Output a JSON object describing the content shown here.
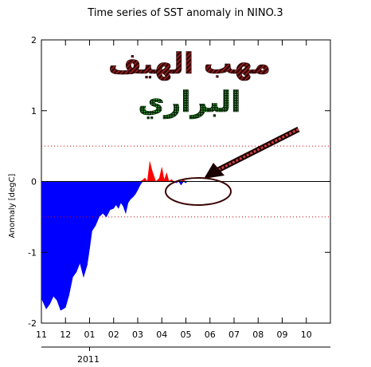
{
  "chart_data": {
    "type": "area",
    "title": "Time series of SST anomaly in NINO.3",
    "ylabel": "Anomaly [degC]",
    "xlabel": "",
    "year_label": "2011",
    "x_tick_labels": [
      "11",
      "12",
      "01",
      "02",
      "03",
      "04",
      "05",
      "06",
      "07",
      "08",
      "09",
      "10"
    ],
    "y_ticks": [
      -2,
      -1,
      0,
      1,
      2
    ],
    "ylim": [
      -2,
      2
    ],
    "reference_lines": [
      0.5,
      -0.5
    ],
    "colors": {
      "positive": "#ff0000",
      "negative": "#0000ff",
      "reference": "#cc0000"
    },
    "series": [
      {
        "x": [
          0.0,
          0.2,
          0.35,
          0.5,
          0.65,
          0.8,
          1.0,
          1.15,
          1.3,
          1.45,
          1.6,
          1.75,
          1.9,
          2.0,
          2.1,
          2.25,
          2.4,
          2.55,
          2.7,
          2.85,
          3.0,
          3.1,
          3.2,
          3.3,
          3.4,
          3.5,
          3.6,
          3.7,
          3.8,
          3.9,
          4.0,
          4.1,
          4.2,
          4.3,
          4.4,
          4.5,
          4.6,
          4.75,
          4.9,
          5.0,
          5.1,
          5.2,
          5.3,
          5.4,
          5.5,
          5.6,
          5.7,
          5.8,
          5.9,
          6.0,
          6.05
        ],
        "values": [
          -1.65,
          -1.8,
          -1.73,
          -1.62,
          -1.68,
          -1.82,
          -1.78,
          -1.6,
          -1.35,
          -1.28,
          -1.15,
          -1.35,
          -1.18,
          -0.95,
          -0.7,
          -0.62,
          -0.5,
          -0.45,
          -0.5,
          -0.4,
          -0.38,
          -0.33,
          -0.38,
          -0.3,
          -0.35,
          -0.45,
          -0.3,
          -0.25,
          -0.22,
          -0.18,
          -0.12,
          -0.05,
          0.02,
          0.05,
          0.0,
          0.28,
          0.15,
          0.0,
          0.05,
          0.2,
          0.02,
          0.12,
          0.0,
          0.03,
          0.0,
          -0.02,
          0.0,
          -0.05,
          0.02,
          -0.02,
          0.0
        ]
      }
    ],
    "annotation_text_line1": "مهب الهيف",
    "annotation_text_line2": "البراري"
  }
}
